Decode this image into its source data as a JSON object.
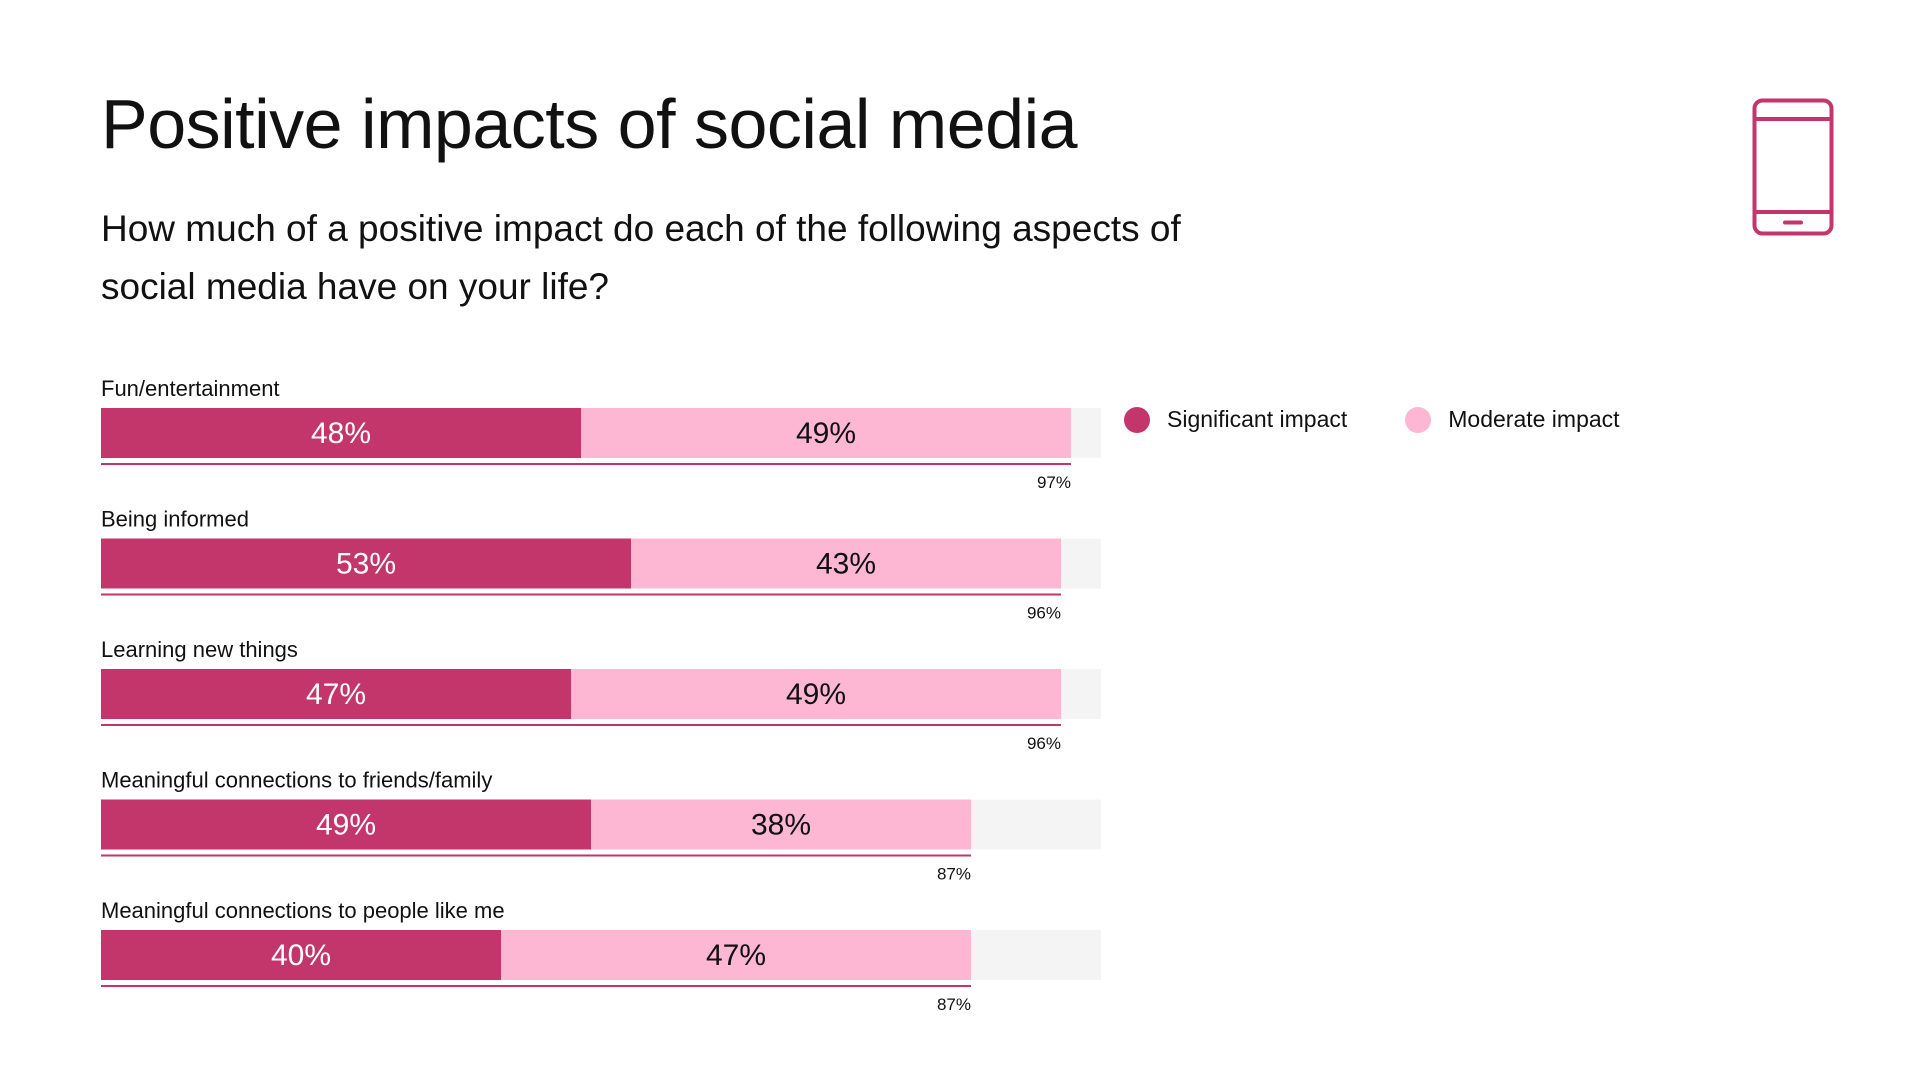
{
  "header": {
    "title": "Positive impacts of social media",
    "subtitle": "How much of a positive impact do each of the following aspects of social media have on your life?",
    "icon": "smartphone-icon"
  },
  "colors": {
    "significant": "#C2366B",
    "moderate": "#FDB7D3",
    "track": "#F4F4F4",
    "underline": "#C2366B",
    "icon": "#C2366B"
  },
  "legend": {
    "significant_label": "Significant impact",
    "moderate_label": "Moderate impact"
  },
  "chart_data": {
    "type": "bar",
    "orientation": "horizontal",
    "stacked": true,
    "title": "Positive impacts of social media",
    "subtitle": "How much of a positive impact do each of the following aspects of social media have on your life?",
    "xlim": [
      0,
      100
    ],
    "value_suffix": "%",
    "categories": [
      "Fun/entertainment",
      "Being informed",
      "Learning new things",
      "Meaningful connections to friends/family",
      "Meaningful connections to people like me"
    ],
    "series": [
      {
        "name": "Significant impact",
        "values": [
          48,
          53,
          47,
          49,
          40
        ]
      },
      {
        "name": "Moderate impact",
        "values": [
          49,
          43,
          49,
          38,
          47
        ]
      }
    ],
    "totals": [
      97,
      96,
      96,
      87,
      87
    ],
    "legend_position": "top-right"
  }
}
